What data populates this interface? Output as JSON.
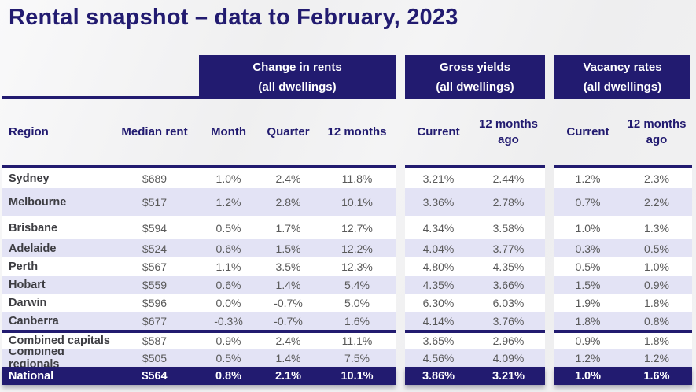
{
  "title": "Rental snapshot – data to February, 2023",
  "groups": [
    {
      "line1": "Change in rents",
      "line2": "(all dwellings)"
    },
    {
      "line1": "Gross yields",
      "line2": "(all dwellings)"
    },
    {
      "line1": "Vacancy rates",
      "line2": "(all dwellings)"
    }
  ],
  "columns": {
    "region": "Region",
    "median_rent": "Median rent",
    "month": "Month",
    "quarter": "Quarter",
    "twelve_months": "12 months",
    "current": "Current",
    "year_ago_line1": "12 months",
    "year_ago_line2": "ago"
  },
  "table": {
    "rows": [
      {
        "region": "Sydney",
        "median_rent": "$689",
        "month": "1.0%",
        "quarter": "2.4%",
        "twelve_months": "11.8%",
        "gy_current": "3.21%",
        "gy_year_ago": "2.44%",
        "vr_current": "1.2%",
        "vr_year_ago": "2.3%"
      },
      {
        "region": "Melbourne",
        "median_rent": "$517",
        "month": "1.2%",
        "quarter": "2.8%",
        "twelve_months": "10.1%",
        "gy_current": "3.36%",
        "gy_year_ago": "2.78%",
        "vr_current": "0.7%",
        "vr_year_ago": "2.2%"
      },
      {
        "region": "Brisbane",
        "median_rent": "$594",
        "month": "0.5%",
        "quarter": "1.7%",
        "twelve_months": "12.7%",
        "gy_current": "4.34%",
        "gy_year_ago": "3.58%",
        "vr_current": "1.0%",
        "vr_year_ago": "1.3%"
      },
      {
        "region": "Adelaide",
        "median_rent": "$524",
        "month": "0.6%",
        "quarter": "1.5%",
        "twelve_months": "12.2%",
        "gy_current": "4.04%",
        "gy_year_ago": "3.77%",
        "vr_current": "0.3%",
        "vr_year_ago": "0.5%"
      },
      {
        "region": "Perth",
        "median_rent": "$567",
        "month": "1.1%",
        "quarter": "3.5%",
        "twelve_months": "12.3%",
        "gy_current": "4.80%",
        "gy_year_ago": "4.35%",
        "vr_current": "0.5%",
        "vr_year_ago": "1.0%"
      },
      {
        "region": "Hobart",
        "median_rent": "$559",
        "month": "0.6%",
        "quarter": "1.4%",
        "twelve_months": "5.4%",
        "gy_current": "4.35%",
        "gy_year_ago": "3.66%",
        "vr_current": "1.5%",
        "vr_year_ago": "0.9%"
      },
      {
        "region": "Darwin",
        "median_rent": "$596",
        "month": "0.0%",
        "quarter": "-0.7%",
        "twelve_months": "5.0%",
        "gy_current": "6.30%",
        "gy_year_ago": "6.03%",
        "vr_current": "1.9%",
        "vr_year_ago": "1.8%"
      },
      {
        "region": "Canberra",
        "median_rent": "$677",
        "month": "-0.3%",
        "quarter": "-0.7%",
        "twelve_months": "1.6%",
        "gy_current": "4.14%",
        "gy_year_ago": "3.76%",
        "vr_current": "1.8%",
        "vr_year_ago": "0.8%"
      },
      {
        "region": "Combined capitals",
        "median_rent": "$587",
        "month": "0.9%",
        "quarter": "2.4%",
        "twelve_months": "11.1%",
        "gy_current": "3.65%",
        "gy_year_ago": "2.96%",
        "vr_current": "0.9%",
        "vr_year_ago": "1.8%"
      },
      {
        "region": "Combined regionals",
        "median_rent": "$505",
        "month": "0.5%",
        "quarter": "1.4%",
        "twelve_months": "7.5%",
        "gy_current": "4.56%",
        "gy_year_ago": "4.09%",
        "vr_current": "1.2%",
        "vr_year_ago": "1.2%"
      },
      {
        "region": "National",
        "median_rent": "$564",
        "month": "0.8%",
        "quarter": "2.1%",
        "twelve_months": "10.1%",
        "gy_current": "3.86%",
        "gy_year_ago": "3.21%",
        "vr_current": "1.0%",
        "vr_year_ago": "1.6%"
      }
    ]
  },
  "chart_data": {
    "type": "table",
    "title": "Rental snapshot – data to February, 2023",
    "column_groups": [
      "Change in rents (all dwellings)",
      "Gross yields (all dwellings)",
      "Vacancy rates (all dwellings)"
    ],
    "columns": [
      "Region",
      "Median rent",
      "Month",
      "Quarter",
      "12 months",
      "Gross yields Current",
      "Gross yields 12 months ago",
      "Vacancy rates Current",
      "Vacancy rates 12 months ago"
    ],
    "rows": [
      [
        "Sydney",
        689,
        1.0,
        2.4,
        11.8,
        3.21,
        2.44,
        1.2,
        2.3
      ],
      [
        "Melbourne",
        517,
        1.2,
        2.8,
        10.1,
        3.36,
        2.78,
        0.7,
        2.2
      ],
      [
        "Brisbane",
        594,
        0.5,
        1.7,
        12.7,
        4.34,
        3.58,
        1.0,
        1.3
      ],
      [
        "Adelaide",
        524,
        0.6,
        1.5,
        12.2,
        4.04,
        3.77,
        0.3,
        0.5
      ],
      [
        "Perth",
        567,
        1.1,
        3.5,
        12.3,
        4.8,
        4.35,
        0.5,
        1.0
      ],
      [
        "Hobart",
        559,
        0.6,
        1.4,
        5.4,
        4.35,
        3.66,
        1.5,
        0.9
      ],
      [
        "Darwin",
        596,
        0.0,
        -0.7,
        5.0,
        6.3,
        6.03,
        1.9,
        1.8
      ],
      [
        "Canberra",
        677,
        -0.3,
        -0.7,
        1.6,
        4.14,
        3.76,
        1.8,
        0.8
      ],
      [
        "Combined capitals",
        587,
        0.9,
        2.4,
        11.1,
        3.65,
        2.96,
        0.9,
        1.8
      ],
      [
        "Combined regionals",
        505,
        0.5,
        1.4,
        7.5,
        4.56,
        4.09,
        1.2,
        1.2
      ],
      [
        "National",
        564,
        0.8,
        2.1,
        10.1,
        3.86,
        3.21,
        1.0,
        1.6
      ]
    ]
  },
  "colors": {
    "navy": "#221b70",
    "lavender": "#e3e3f5",
    "row_white": "#ffffff",
    "value_text": "#595959",
    "region_text": "#3d3d42",
    "page_background": "#f0f0f0"
  }
}
